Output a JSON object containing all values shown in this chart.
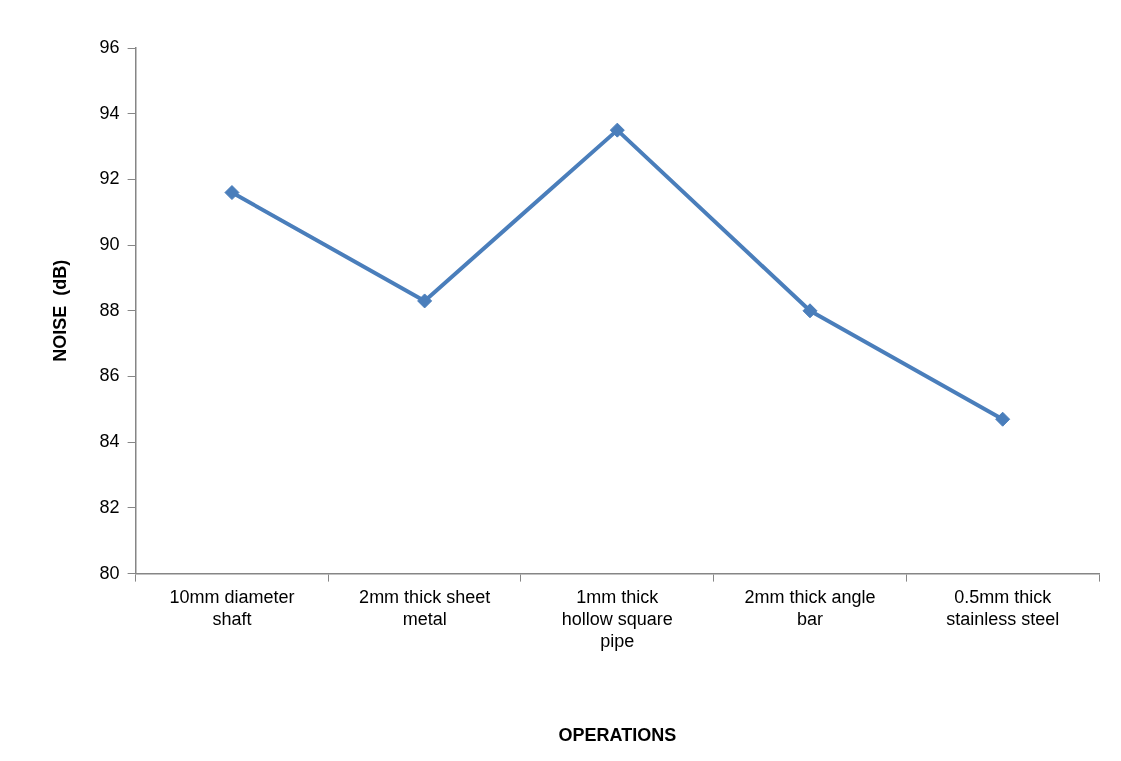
{
  "chart_data": {
    "type": "line",
    "xlabel": "OPERATIONS",
    "ylabel": "NOISE  (dB)",
    "categories": [
      "10mm diameter shaft",
      "2mm thick sheet metal",
      "1mm thick hollow square pipe",
      "2mm thick angle bar",
      "0.5mm thick stainless steel"
    ],
    "series": [
      {
        "color": "#4a7ebb",
        "values": [
          91.6,
          88.3,
          93.5,
          88.0,
          84.7
        ]
      }
    ],
    "ylim": [
      80,
      96
    ],
    "yticks": [
      80,
      82,
      84,
      86,
      88,
      90,
      92,
      94,
      96
    ],
    "grid": false,
    "legend": false,
    "marker": "diamond",
    "line_style": "solid"
  }
}
